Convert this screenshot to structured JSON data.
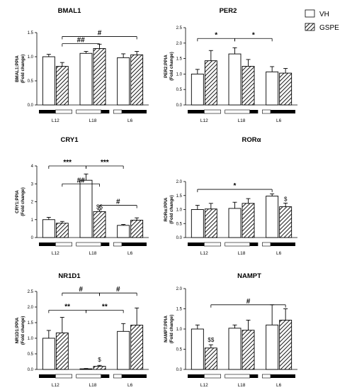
{
  "legend": {
    "items": [
      {
        "label": "VH",
        "style": "open"
      },
      {
        "label": "GSPE",
        "style": "hatched"
      }
    ]
  },
  "chart_data": [
    {
      "type": "bar",
      "title": "BMAL1",
      "ylabel": "BMAL1:PPIA",
      "ylabel2": "(Fold change)",
      "categories": [
        "L12",
        "L18",
        "L6"
      ],
      "ylim": [
        0,
        1.5
      ],
      "yticks": [
        "0.0",
        "0.5",
        "1.0",
        "1.5"
      ],
      "series": [
        {
          "name": "VH",
          "values": [
            1.0,
            1.07,
            0.98
          ],
          "errors": [
            0.05,
            0.04,
            0.08
          ]
        },
        {
          "name": "GSPE",
          "values": [
            0.8,
            1.17,
            1.04
          ],
          "errors": [
            0.08,
            0.09,
            0.07
          ]
        }
      ],
      "annotations": [
        {
          "text": "##",
          "from": "L12.GSPE",
          "to": "L18.GSPE",
          "level": 1.27
        },
        {
          "text": "#",
          "from": "L12.GSPE",
          "to": "L6.GSPE",
          "level": 1.42
        }
      ],
      "light_bars": [
        "dark-light",
        "light-dark",
        "light-dark"
      ]
    },
    {
      "type": "bar",
      "title": "PER2",
      "ylabel": "PER2:PPIA",
      "ylabel2": "(Fold change)",
      "categories": [
        "L12",
        "L18",
        "L6"
      ],
      "ylim": [
        0,
        2.5
      ],
      "yticks": [
        "0.0",
        "0.5",
        "1.0",
        "1.5",
        "2.0",
        "2.5"
      ],
      "series": [
        {
          "name": "VH",
          "values": [
            1.0,
            1.65,
            1.07
          ],
          "errors": [
            0.15,
            0.2,
            0.17
          ]
        },
        {
          "name": "GSPE",
          "values": [
            1.43,
            1.25,
            1.03
          ],
          "errors": [
            0.33,
            0.22,
            0.15
          ]
        }
      ],
      "annotations": [
        {
          "text": "*",
          "from": "L12.VH",
          "to": "L18.VH",
          "level": 2.15
        },
        {
          "text": "*",
          "from": "L18.VH",
          "to": "L6.VH",
          "level": 2.15
        }
      ],
      "light_bars": [
        "dark-light",
        "light-dark",
        "light-dark"
      ]
    },
    {
      "type": "bar",
      "title": "CRY1",
      "ylabel": "CRY1:PPIA",
      "ylabel2": "(Fold change)",
      "categories": [
        "L12",
        "L18",
        "L6"
      ],
      "ylim": [
        0,
        4
      ],
      "yticks": [
        "0",
        "1",
        "2",
        "3",
        "4"
      ],
      "series": [
        {
          "name": "VH",
          "values": [
            1.0,
            3.2,
            0.68
          ],
          "errors": [
            0.13,
            0.35,
            0.05
          ]
        },
        {
          "name": "GSPE",
          "values": [
            0.8,
            1.45,
            0.97
          ],
          "errors": [
            0.1,
            0.1,
            0.13
          ]
        }
      ],
      "annotations": [
        {
          "text": "***",
          "from": "L12.VH",
          "to": "L18.VH",
          "level": 4.0
        },
        {
          "text": "***",
          "from": "L18.VH",
          "to": "L6.VH",
          "level": 4.0
        },
        {
          "text": "##",
          "from": "L12.GSPE",
          "to": "L18.GSPE",
          "level": 3.0
        },
        {
          "text": "#",
          "from": "L18.GSPE",
          "to": "L6.GSPE",
          "level": 1.8
        },
        {
          "text": "$$",
          "from": "L18.GSPE",
          "to": "L18.GSPE",
          "level": 1.6
        }
      ],
      "light_bars": [
        "dark-light",
        "light-dark",
        "light-dark"
      ]
    },
    {
      "type": "bar",
      "title": "RORα",
      "ylabel": "RORα:PPIA",
      "ylabel2": "(Fold change)",
      "categories": [
        "L12",
        "L18",
        "L6"
      ],
      "ylim": [
        0,
        2.0
      ],
      "yticks": [
        "0.0",
        "0.5",
        "1.0",
        "1.5",
        "2.0"
      ],
      "series": [
        {
          "name": "VH",
          "values": [
            1.0,
            1.04,
            1.48
          ],
          "errors": [
            0.15,
            0.22,
            0.08
          ]
        },
        {
          "name": "GSPE",
          "values": [
            1.02,
            1.22,
            1.1
          ],
          "errors": [
            0.2,
            0.17,
            0.13
          ]
        }
      ],
      "annotations": [
        {
          "text": "*",
          "from": "L12.VH",
          "to": "L6.VH",
          "level": 1.72
        },
        {
          "text": "$",
          "from": "L6.GSPE",
          "to": "L6.GSPE",
          "level": 1.3
        }
      ],
      "light_bars": [
        "dark-light",
        "light-dark",
        "light-dark"
      ]
    },
    {
      "type": "bar",
      "title": "NR1D1",
      "ylabel": "NR1D1:PPIA",
      "ylabel2": "(Fold change)",
      "categories": [
        "L12",
        "L18",
        "L6"
      ],
      "ylim": [
        0,
        2.5
      ],
      "yticks": [
        "0.0",
        "0.5",
        "1.0",
        "1.5",
        "2.0",
        "2.5"
      ],
      "series": [
        {
          "name": "VH",
          "values": [
            1.0,
            0.02,
            1.22
          ],
          "errors": [
            0.25,
            0.01,
            0.25
          ]
        },
        {
          "name": "GSPE",
          "values": [
            1.17,
            0.1,
            1.42
          ],
          "errors": [
            0.5,
            0.03,
            0.55
          ]
        }
      ],
      "annotations": [
        {
          "text": "#",
          "from": "L12.GSPE",
          "to": "L18.GSPE",
          "level": 2.45
        },
        {
          "text": "#",
          "from": "L18.GSPE",
          "to": "L6.GSPE",
          "level": 2.45
        },
        {
          "text": "**",
          "from": "L12.VH",
          "to": "L18.VH",
          "level": 1.9
        },
        {
          "text": "**",
          "from": "L18.VH",
          "to": "L6.VH",
          "level": 1.9
        },
        {
          "text": "$",
          "from": "L18.GSPE",
          "to": "L18.GSPE",
          "level": 0.25
        }
      ],
      "light_bars": [
        "dark-light",
        "light-dark",
        "light-dark"
      ]
    },
    {
      "type": "bar",
      "title": "NAMPT",
      "ylabel": "NAMPT:PPIA",
      "ylabel2": "(Fold change)",
      "categories": [
        "L12",
        "L18",
        "L6"
      ],
      "ylim": [
        0,
        2.0
      ],
      "yticks": [
        "0.0",
        "0.5",
        "1.0",
        "1.5",
        "2.0"
      ],
      "series": [
        {
          "name": "VH",
          "values": [
            1.0,
            1.02,
            1.1
          ],
          "errors": [
            0.1,
            0.08,
            0.5
          ]
        },
        {
          "name": "GSPE",
          "values": [
            0.53,
            0.97,
            1.22
          ],
          "errors": [
            0.08,
            0.25,
            0.28
          ]
        }
      ],
      "annotations": [
        {
          "text": "#",
          "from": "L12.GSPE",
          "to": "L6.GSPE",
          "level": 1.6
        },
        {
          "text": "$$",
          "from": "L12.GSPE",
          "to": "L12.GSPE",
          "level": 0.68
        }
      ],
      "light_bars": [
        "dark-light",
        "light-dark",
        "light-dark"
      ]
    }
  ]
}
